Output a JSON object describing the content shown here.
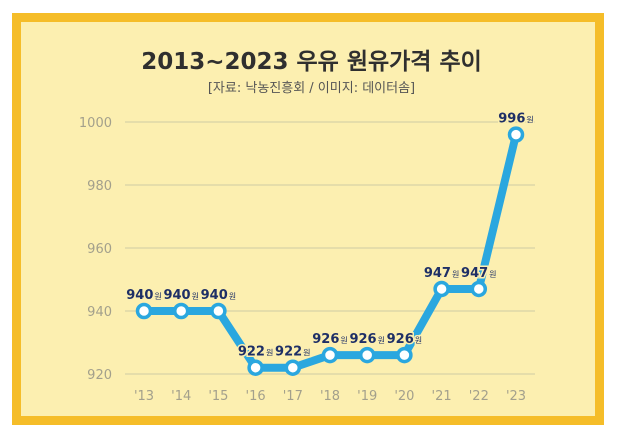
{
  "chart_data": {
    "type": "line",
    "title": "2013~2023 우유 원유가격 추이",
    "subtitle": "[자료: 낙농진흥회 / 이미지: 데이터솜]",
    "categories": [
      "'13",
      "'14",
      "'15",
      "'16",
      "'17",
      "'18",
      "'19",
      "'20",
      "'21",
      "'22",
      "'23"
    ],
    "series": [
      {
        "values": [
          940,
          940,
          940,
          922,
          922,
          926,
          926,
          926,
          947,
          947,
          996
        ]
      }
    ],
    "value_suffix": "원",
    "yticks": [
      920,
      940,
      960,
      980,
      1000
    ],
    "ylim": [
      920,
      1000
    ],
    "grid": true,
    "colors": {
      "line": "#2aa7df",
      "marker_fill": "#ffffff",
      "grid": "#d7d2a6",
      "tick": "#a3a08c",
      "label": "#1e2f66",
      "frame": "#f5bd29",
      "background": "#fcefb0"
    }
  }
}
